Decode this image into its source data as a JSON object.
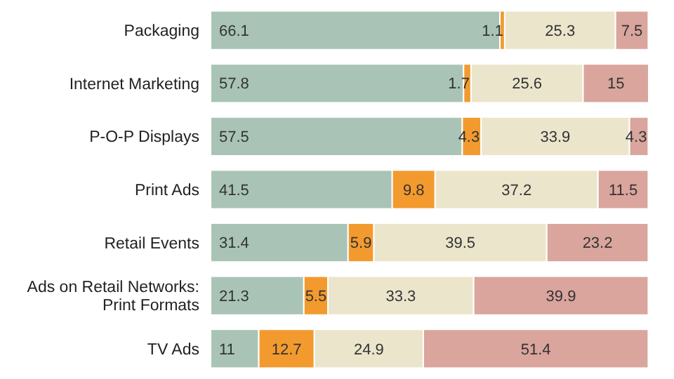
{
  "chart_data": {
    "type": "bar",
    "orientation": "horizontal",
    "stacked": true,
    "data_labels": true,
    "categories": [
      "Packaging",
      "Internet Marketing",
      "P-O-P Displays",
      "Print Ads",
      "Retail Events",
      "Ads on Retail Networks: Print Formats",
      "TV Ads"
    ],
    "series": [
      {
        "color": "#a9c4b6",
        "values": [
          66.1,
          57.8,
          57.5,
          41.5,
          31.4,
          21.3,
          11
        ]
      },
      {
        "color": "#f39a2e",
        "values": [
          1.1,
          1.7,
          4.3,
          9.8,
          5.9,
          5.5,
          12.7
        ]
      },
      {
        "color": "#ebe5cc",
        "values": [
          25.3,
          25.6,
          33.9,
          37.2,
          39.5,
          33.3,
          24.9
        ]
      },
      {
        "color": "#d9a59c",
        "values": [
          7.5,
          15,
          4.3,
          11.5,
          23.2,
          39.9,
          51.4
        ]
      }
    ]
  }
}
